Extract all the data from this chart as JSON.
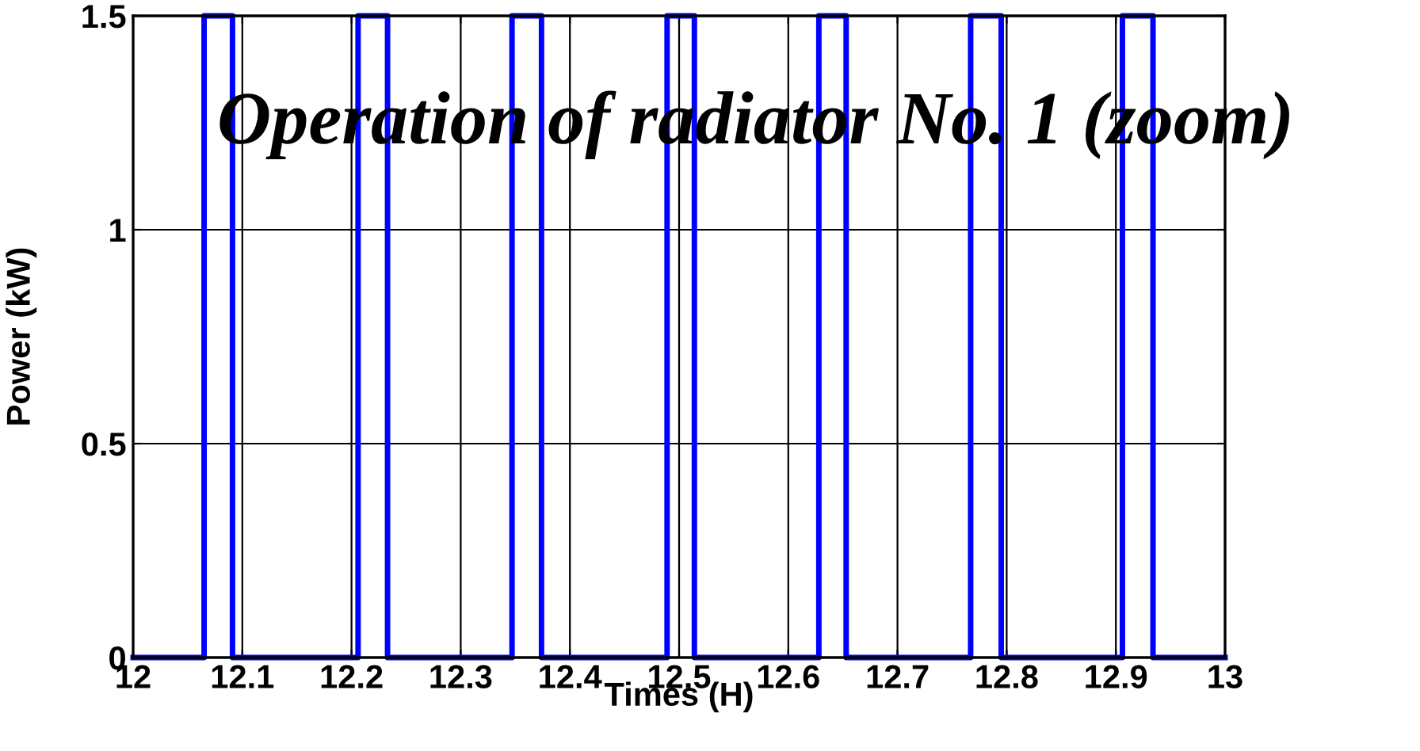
{
  "chart_data": {
    "type": "step",
    "title": "Operation of radiator No. 1 (zoom)",
    "xlabel": "Times (H)",
    "ylabel": "Power (kW)",
    "x": [
      12,
      12.065,
      12.091,
      12.206,
      12.233,
      12.347,
      12.374,
      12.489,
      12.514,
      12.628,
      12.653,
      12.767,
      12.795,
      12.906,
      12.934,
      13
    ],
    "series": [
      {
        "color": "#0000ff",
        "values": [
          0,
          1.5,
          0,
          1.5,
          0,
          1.5,
          0,
          1.5,
          0,
          1.5,
          0,
          1.5,
          0,
          1.5,
          0,
          0
        ]
      }
    ],
    "xlim": [
      12,
      13
    ],
    "xticks": [
      12,
      12.1,
      12.2,
      12.3,
      12.4,
      12.5,
      12.6,
      12.7,
      12.8,
      12.9,
      13
    ],
    "ylim": [
      0,
      1.5
    ],
    "yticks": [
      0,
      0.5,
      1,
      1.5
    ],
    "grid": true,
    "marker": "none",
    "line_style": "solid"
  }
}
